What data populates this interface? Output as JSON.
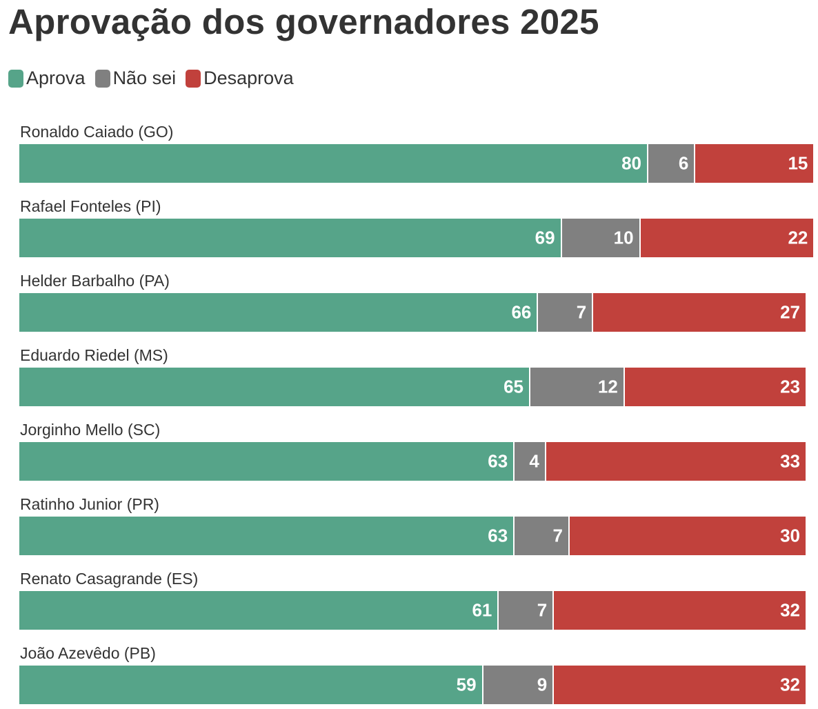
{
  "chart_data": {
    "type": "bar",
    "orientation": "horizontal",
    "stacked": true,
    "title": "Aprovação dos governadores 2025",
    "categories": [
      "Ronaldo Caiado (GO)",
      "Rafael Fonteles (PI)",
      "Helder Barbalho (PA)",
      "Eduardo Riedel (MS)",
      "Jorginho Mello (SC)",
      "Ratinho Junior (PR)",
      "Renato Casagrande (ES)",
      "João Azevêdo (PB)"
    ],
    "series": [
      {
        "name": "Aprova",
        "color": "#56a489",
        "values": [
          80,
          69,
          66,
          65,
          63,
          63,
          61,
          59
        ]
      },
      {
        "name": "Não sei",
        "color": "#808080",
        "values": [
          6,
          10,
          7,
          12,
          4,
          7,
          7,
          9
        ]
      },
      {
        "name": "Desaprova",
        "color": "#c1413c",
        "values": [
          15,
          22,
          27,
          23,
          33,
          30,
          32,
          32
        ]
      }
    ],
    "legend": "top-left",
    "grid": false
  }
}
